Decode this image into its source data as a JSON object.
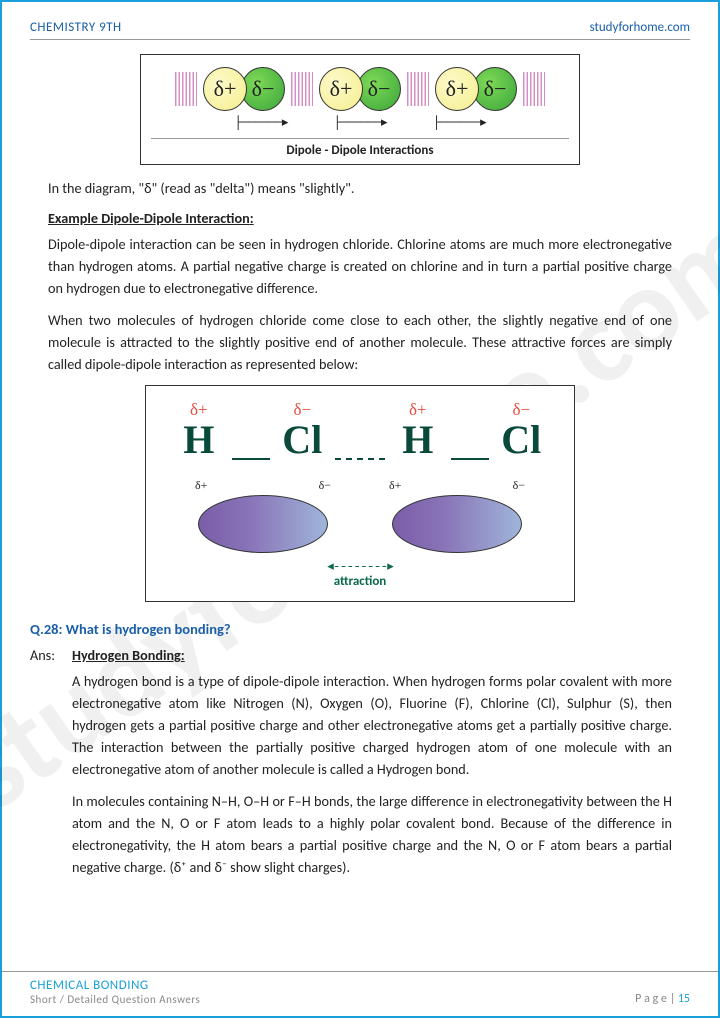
{
  "header": {
    "left": "CHEMISTRY 9TH",
    "right": "studyforhome.com"
  },
  "watermark": "studyforhome.com",
  "diagram1": {
    "delta_plus": "δ+",
    "delta_minus": "δ−",
    "arrow": "├──────▸",
    "caption": "Dipole - Dipole Interactions"
  },
  "body": {
    "intro": "In the diagram, \"δ\" (read as \"delta\") means \"slightly\".",
    "example_heading": "Example Dipole-Dipole Interaction",
    "p1": "Dipole-dipole interaction can be seen in hydrogen chloride. Chlorine atoms are much more electronegative than hydrogen atoms. A partial negative charge is created on chlorine and in turn a partial positive charge on hydrogen due to electronegative difference.",
    "p2": "When two molecules of hydrogen chloride come close to each other, the slightly negative end of one molecule is attracted to the slightly positive end of another molecule. These attractive forces are simply called dipole-dipole interaction as represented below:"
  },
  "diagram2": {
    "dplus": "δ+",
    "dminus": "δ−",
    "H": "H",
    "Cl": "Cl",
    "attraction": "attraction",
    "attr_arrow": "◂--------▸"
  },
  "q28": {
    "label": "Q.28:  What is hydrogen bonding?",
    "ans_label": "Ans:",
    "heading": "Hydrogen Bonding",
    "p1": "A hydrogen bond is a type of dipole-dipole interaction. When hydrogen forms polar covalent with more electronegative atom like Nitrogen (N), Oxygen (O), Fluorine (F), Chlorine (Cl), Sulphur (S), then hydrogen gets a partial positive charge and other electronegative atoms get a partially positive charge. The interaction between the partially positive charged hydrogen atom of one molecule with an electronegative atom of another molecule is called a Hydrogen bond.",
    "p2": "In molecules containing N–H, O–H or F–H bonds, the large difference in electronegativity between the H atom and the N, O or F atom leads to a highly polar covalent bond. Because of the difference in electronegativity, the H atom bears a partial positive charge and the N, O or F atom bears a partial negative charge. (δ⁺ and δ⁻ show slight charges)."
  },
  "footer": {
    "line1": "CHEMICAL BONDING",
    "line2": "Short / Detailed Question Answers",
    "page_prefix": "P a g e  | ",
    "page_num": "15"
  }
}
